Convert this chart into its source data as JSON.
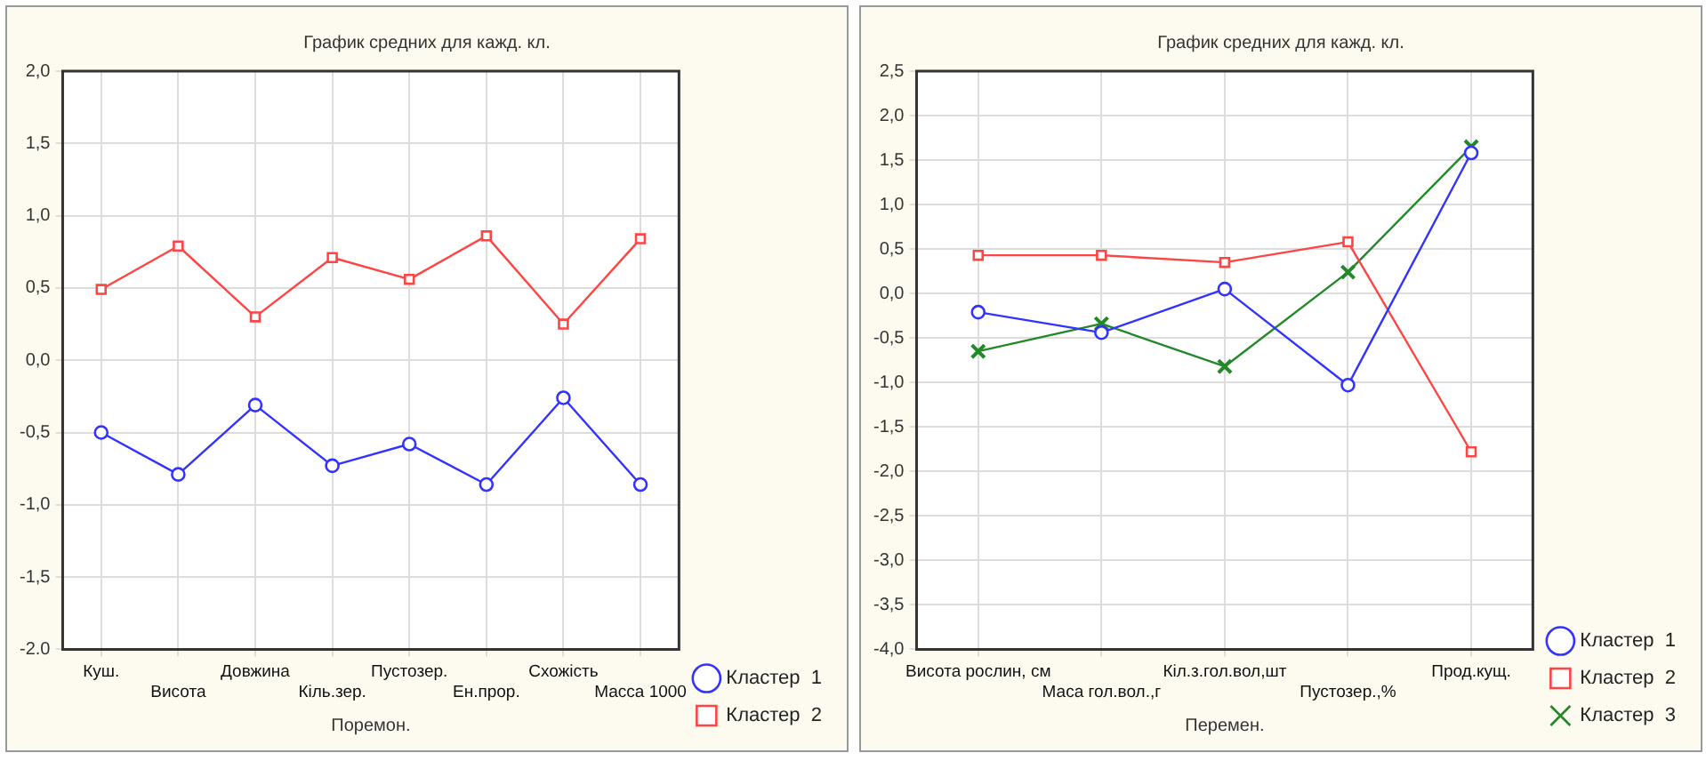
{
  "chart_data": [
    {
      "type": "line",
      "title": "График средних для кажд. кл.",
      "xlabel": "Поремон.",
      "categories": [
        "Куш.",
        "Висота",
        "Довжина",
        "Кіль.зер.",
        "Пустозер.",
        "Ен.прор.",
        "Схожість",
        "Масса 1000"
      ],
      "series": [
        {
          "name": "Кластер  1",
          "color": "#3333ff",
          "marker": "circle",
          "values": [
            -0.5,
            -0.79,
            -0.31,
            -0.73,
            -0.58,
            -0.86,
            -0.26,
            -0.86
          ]
        },
        {
          "name": "Кластер  2",
          "color": "#ff4444",
          "marker": "square",
          "values": [
            0.49,
            0.79,
            0.3,
            0.71,
            0.56,
            0.86,
            0.25,
            0.84
          ]
        }
      ],
      "ylim": [
        -2,
        2
      ],
      "yticks": [
        {
          "value": -2,
          "label": "-2.0"
        },
        {
          "value": -1.5,
          "label": "-1,5"
        },
        {
          "value": -1,
          "label": "-1,0"
        },
        {
          "value": -0.5,
          "label": "-0,5"
        },
        {
          "value": 0,
          "label": "0,0"
        },
        {
          "value": 0.5,
          "label": "0,5"
        },
        {
          "value": 1,
          "label": "1,0"
        },
        {
          "value": 1.5,
          "label": "1,5"
        },
        {
          "value": 2,
          "label": "2,0"
        }
      ],
      "grid": true,
      "legend": "bottom right"
    },
    {
      "type": "line",
      "title": "График средних для кажд. кл.",
      "xlabel": "Перемен.",
      "categories": [
        "Висота рослин, см",
        "Маса гол.вол.,г",
        "Кіл.з.гол.вол,шт",
        "Пустозер.,%",
        "Прод.кущ."
      ],
      "series": [
        {
          "name": "Кластер  1",
          "color": "#3333ff",
          "marker": "circle",
          "values": [
            -0.21,
            -0.44,
            0.05,
            -1.03,
            1.58
          ]
        },
        {
          "name": "Кластер  2",
          "color": "#ff4444",
          "marker": "square",
          "values": [
            0.43,
            0.43,
            0.35,
            0.58,
            -1.78
          ]
        },
        {
          "name": "Кластер  3",
          "color": "#22882a",
          "marker": "cross",
          "values": [
            -0.65,
            -0.34,
            -0.82,
            0.24,
            1.65
          ]
        }
      ],
      "ylim": [
        -4,
        2.5
      ],
      "yticks": [
        {
          "value": -4,
          "label": "-4,0"
        },
        {
          "value": -3.5,
          "label": "-3,5"
        },
        {
          "value": -3,
          "label": "-3,0"
        },
        {
          "value": -2.5,
          "label": "-2,5"
        },
        {
          "value": -2,
          "label": "-2,0"
        },
        {
          "value": -1.5,
          "label": "-1,5"
        },
        {
          "value": -1,
          "label": "-1,0"
        },
        {
          "value": -0.5,
          "label": "-0,5"
        },
        {
          "value": 0,
          "label": "0,0"
        },
        {
          "value": 0.5,
          "label": "0,5"
        },
        {
          "value": 1,
          "label": "1,0"
        },
        {
          "value": 1.5,
          "label": "1,5"
        },
        {
          "value": 2,
          "label": "2,0"
        },
        {
          "value": 2.5,
          "label": "2,5"
        }
      ],
      "grid": true,
      "legend": "bottom right"
    }
  ]
}
